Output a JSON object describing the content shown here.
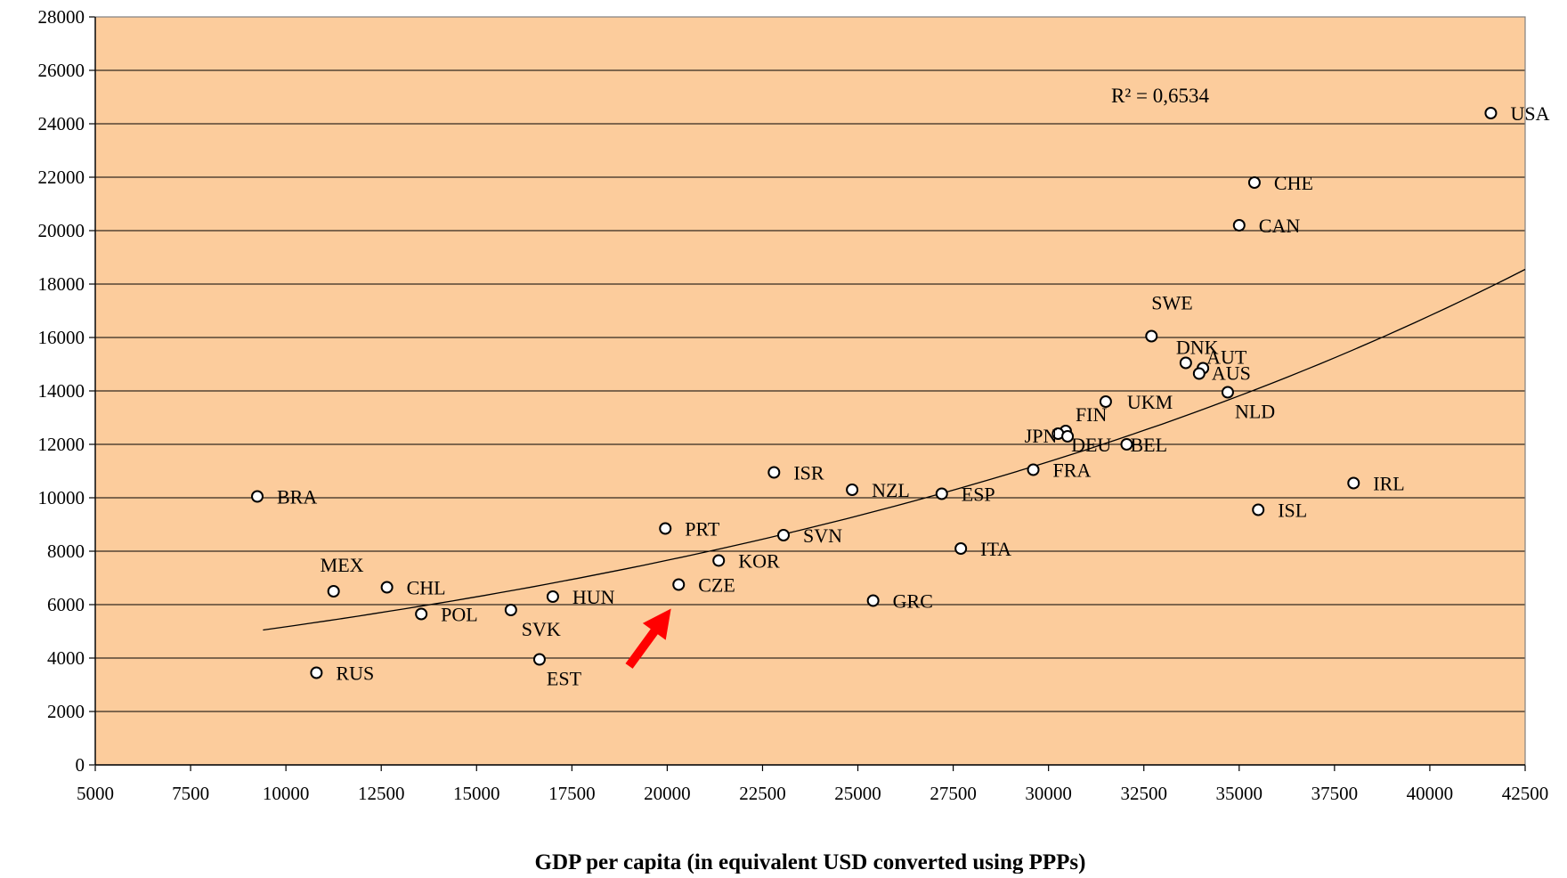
{
  "chart_data": {
    "type": "scatter",
    "xlabel": "GDP per capita (in equivalent USD converted using PPPs)",
    "ylabel": "",
    "xlim": [
      5000,
      42500
    ],
    "ylim": [
      0,
      28000
    ],
    "x_ticks": [
      5000,
      7500,
      10000,
      12500,
      15000,
      17500,
      20000,
      22500,
      25000,
      27500,
      30000,
      32500,
      35000,
      37500,
      40000,
      42500
    ],
    "y_ticks": [
      0,
      2000,
      4000,
      6000,
      8000,
      10000,
      12000,
      14000,
      16000,
      18000,
      20000,
      22000,
      24000,
      26000,
      28000
    ],
    "grid": "horizontal",
    "annotation_r2": "R² = 0,6534",
    "points": [
      {
        "label": "USA",
        "x": 41600,
        "y": 24400
      },
      {
        "label": "CHE",
        "x": 35400,
        "y": 21800
      },
      {
        "label": "CAN",
        "x": 35000,
        "y": 20200
      },
      {
        "label": "SWE",
        "x": 32700,
        "y": 16050
      },
      {
        "label": "DNK",
        "x": 33600,
        "y": 15050
      },
      {
        "label": "AUT",
        "x": 34050,
        "y": 14850
      },
      {
        "label": "AUS",
        "x": 33950,
        "y": 14650
      },
      {
        "label": "NLD",
        "x": 34700,
        "y": 13950
      },
      {
        "label": "UKM",
        "x": 31500,
        "y": 13600
      },
      {
        "label": "FIN",
        "x": 30450,
        "y": 12500
      },
      {
        "label": "JPN",
        "x": 30250,
        "y": 12400
      },
      {
        "label": "DEU",
        "x": 30500,
        "y": 12300
      },
      {
        "label": "BEL",
        "x": 32050,
        "y": 12000
      },
      {
        "label": "FRA",
        "x": 29600,
        "y": 11050
      },
      {
        "label": "IRL",
        "x": 38000,
        "y": 10550
      },
      {
        "label": "ISL",
        "x": 35500,
        "y": 9550
      },
      {
        "label": "ESP",
        "x": 27200,
        "y": 10150
      },
      {
        "label": "NZL",
        "x": 24850,
        "y": 10300
      },
      {
        "label": "ISR",
        "x": 22800,
        "y": 10950
      },
      {
        "label": "ITA",
        "x": 27700,
        "y": 8100
      },
      {
        "label": "SVN",
        "x": 23050,
        "y": 8600
      },
      {
        "label": "PRT",
        "x": 19950,
        "y": 8850
      },
      {
        "label": "KOR",
        "x": 21350,
        "y": 7650
      },
      {
        "label": "CZE",
        "x": 20300,
        "y": 6750
      },
      {
        "label": "GRC",
        "x": 25400,
        "y": 6150
      },
      {
        "label": "BRA",
        "x": 9250,
        "y": 10050
      },
      {
        "label": "MEX",
        "x": 11250,
        "y": 6500
      },
      {
        "label": "CHL",
        "x": 12650,
        "y": 6650
      },
      {
        "label": "POL",
        "x": 13550,
        "y": 5650
      },
      {
        "label": "SVK",
        "x": 15900,
        "y": 5800
      },
      {
        "label": "HUN",
        "x": 17000,
        "y": 6300
      },
      {
        "label": "EST",
        "x": 16650,
        "y": 3950
      },
      {
        "label": "RUS",
        "x": 10800,
        "y": 3450
      }
    ],
    "trendline": {
      "type": "exponential",
      "x_range": [
        9400,
        42500
      ],
      "y_start": 5050,
      "y_end": 18550
    },
    "arrow": {
      "from": [
        19000,
        3700
      ],
      "to": [
        20100,
        5850
      ],
      "color": "#ff0000",
      "points_at": "CZE"
    },
    "colors": {
      "plot_background": "#fccc9c",
      "marker_fill": "#ffffff",
      "marker_stroke": "#000000",
      "trendline": "#000000",
      "gridline": "#000000"
    }
  }
}
